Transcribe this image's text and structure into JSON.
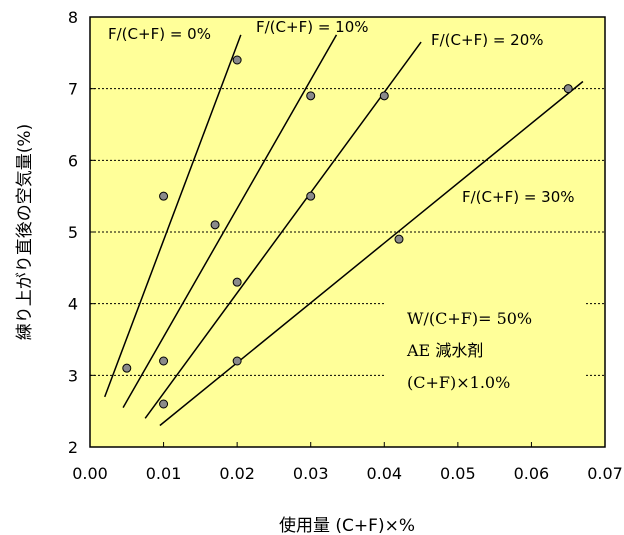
{
  "chart_data": {
    "type": "scatter",
    "xlabel": "使用量 (C+F)×%",
    "ylabel": "練り上がり直後の空気量(%)",
    "xlim": [
      0,
      0.07
    ],
    "ylim": [
      2,
      8
    ],
    "x_ticks": [
      "0.00",
      "0.01",
      "0.02",
      "0.03",
      "0.04",
      "0.05",
      "0.06",
      "0.07"
    ],
    "y_ticks": [
      "2",
      "3",
      "4",
      "5",
      "6",
      "7",
      "8"
    ],
    "grid": "horizontal dashed",
    "plot_background": "#ffff99",
    "series": [
      {
        "name": "F/(C+F) = 0%",
        "points": [
          [
            0.005,
            3.1
          ],
          [
            0.01,
            5.5
          ],
          [
            0.02,
            7.4
          ]
        ],
        "fit": [
          [
            0.002,
            2.7
          ],
          [
            0.0205,
            7.75
          ]
        ]
      },
      {
        "name": "F/(C+F) = 10%",
        "points": [
          [
            0.01,
            3.2
          ],
          [
            0.017,
            5.1
          ],
          [
            0.03,
            6.9
          ]
        ],
        "fit": [
          [
            0.0045,
            2.55
          ],
          [
            0.0335,
            7.75
          ]
        ]
      },
      {
        "name": "F/(C+F) = 20%",
        "points": [
          [
            0.01,
            2.6
          ],
          [
            0.02,
            4.3
          ],
          [
            0.03,
            5.5
          ],
          [
            0.04,
            6.9
          ]
        ],
        "fit": [
          [
            0.0075,
            2.4
          ],
          [
            0.045,
            7.65
          ]
        ]
      },
      {
        "name": "F/(C+F) = 30%",
        "points": [
          [
            0.02,
            3.2
          ],
          [
            0.042,
            4.9
          ],
          [
            0.065,
            7.0
          ]
        ],
        "fit": [
          [
            0.0095,
            2.3
          ],
          [
            0.067,
            7.1
          ]
        ]
      }
    ],
    "annotations": [
      "W/(C+F)= 50%",
      "AE 減水剤",
      "(C+F)×1.0%"
    ]
  }
}
